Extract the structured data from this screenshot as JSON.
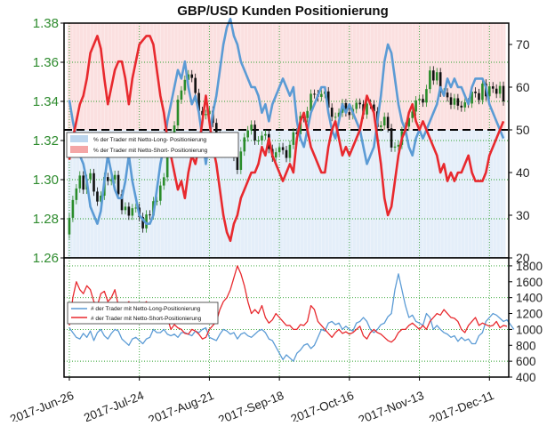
{
  "chart_data": [
    {
      "type": "candlestick+line",
      "title": "GBP/USD Kunden Positionierung",
      "price_axis": {
        "ticks": [
          "1.26",
          "1.28",
          "1.30",
          "1.32",
          "1.34",
          "1.36",
          "1.38"
        ],
        "range": [
          1.26,
          1.38
        ]
      },
      "percent_axis": {
        "ticks": [
          "20",
          "30",
          "40",
          "50",
          "60",
          "70"
        ],
        "range": [
          20,
          75
        ]
      },
      "reference_line": 50,
      "legend": {
        "placement": "left-middle",
        "items": [
          {
            "label": "% der Trader mit Netto-Long- Positionierung",
            "color": "#bcd6ee"
          },
          {
            "label": "% der Trader mit Netto-Short- Positionierung",
            "color": "#f4a6a6"
          }
        ]
      },
      "series": [
        {
          "name": "% der Trader mit Netto-Long- Positionierung",
          "color": "#5b9bd5",
          "values": [
            57,
            52,
            48,
            44,
            42,
            38,
            32,
            30,
            28,
            31,
            38,
            44,
            40,
            36,
            34,
            34,
            38,
            44,
            38,
            34,
            30,
            29,
            28,
            28,
            30,
            36,
            42,
            46,
            52,
            56,
            60,
            64,
            62,
            66,
            60,
            56,
            58,
            54,
            48,
            42,
            48,
            54,
            58,
            64,
            70,
            74,
            76,
            72,
            70,
            66,
            64,
            62,
            60,
            60,
            58,
            54,
            56,
            52,
            56,
            58,
            60,
            62,
            60,
            58,
            60,
            52,
            48,
            46,
            50,
            54,
            56,
            58,
            60,
            60,
            54,
            50,
            48,
            52,
            56,
            54,
            56,
            54,
            52,
            50,
            46,
            42,
            44,
            46,
            52,
            58,
            66,
            70,
            68,
            62,
            56,
            52,
            50,
            46,
            44,
            48,
            50,
            48,
            50,
            52,
            54,
            56,
            60,
            58,
            62,
            60,
            62,
            60,
            60,
            58,
            56,
            60,
            62,
            62,
            62,
            60,
            56,
            54,
            52,
            50,
            48
          ]
        },
        {
          "name": "% der Trader mit Netto-Short- Positionierung",
          "color": "#e8292e",
          "values": [
            43,
            48,
            52,
            56,
            58,
            62,
            68,
            70,
            72,
            69,
            62,
            56,
            60,
            64,
            66,
            66,
            62,
            56,
            62,
            66,
            70,
            71,
            72,
            72,
            70,
            64,
            58,
            54,
            48,
            44,
            40,
            36,
            38,
            34,
            40,
            44,
            42,
            46,
            52,
            58,
            52,
            46,
            42,
            36,
            30,
            26,
            24,
            28,
            30,
            34,
            36,
            38,
            40,
            40,
            42,
            46,
            44,
            48,
            44,
            42,
            40,
            38,
            40,
            42,
            40,
            48,
            52,
            54,
            50,
            46,
            44,
            42,
            40,
            40,
            46,
            50,
            52,
            48,
            44,
            46,
            44,
            46,
            48,
            50,
            54,
            58,
            56,
            54,
            48,
            42,
            34,
            30,
            32,
            38,
            44,
            48,
            50,
            54,
            56,
            52,
            50,
            52,
            50,
            48,
            46,
            44,
            40,
            42,
            38,
            40,
            38,
            40,
            40,
            42,
            44,
            40,
            38,
            38,
            38,
            40,
            44,
            46,
            48,
            50,
            52
          ]
        }
      ],
      "price": {
        "name": "GBP/USD",
        "open": [
          1.272,
          1.2805,
          1.2896,
          1.2955,
          1.3021,
          1.2949,
          1.3003,
          1.3033,
          1.2939,
          1.2888,
          1.2918,
          1.3013,
          1.2993,
          1.3001,
          1.3024,
          1.2926,
          1.2844,
          1.2862,
          1.2816,
          1.2854,
          1.2857,
          1.2809,
          1.2751,
          1.2822,
          1.2818,
          1.289,
          1.2892,
          1.297,
          1.3012,
          1.3147,
          1.3226,
          1.3277,
          1.3409,
          1.3456,
          1.351,
          1.3538,
          1.352,
          1.3443,
          1.3351,
          1.333,
          1.3335,
          1.3352,
          1.329,
          1.3225,
          1.3168,
          1.3145,
          1.3186,
          1.3213,
          1.3117,
          1.305,
          1.3144,
          1.3216,
          1.3252,
          1.3281,
          1.32,
          1.32,
          1.3225,
          1.3233,
          1.3157,
          1.3113,
          1.314,
          1.3166,
          1.3151,
          1.3111,
          1.3178,
          1.3242,
          1.3232,
          1.3325,
          1.3315,
          1.3351,
          1.3439,
          1.3437,
          1.3423,
          1.3438,
          1.3451,
          1.3368,
          1.3321,
          1.3321,
          1.3342,
          1.3391,
          1.3345,
          1.333,
          1.3361,
          1.3393,
          1.3385,
          1.3333,
          1.3389,
          1.3384,
          1.3349,
          1.3269,
          1.3277,
          1.3321,
          1.3263,
          1.3164,
          1.3169,
          1.3178,
          1.3248,
          1.3271,
          1.3315,
          1.3348,
          1.3405,
          1.3413,
          1.3394,
          1.3463,
          1.3558,
          1.3507,
          1.3549,
          1.3445,
          1.3445,
          1.3421,
          1.3383,
          1.3416,
          1.3378,
          1.3369,
          1.3395,
          1.3389,
          1.345,
          1.3442,
          1.3407,
          1.3491,
          1.3426,
          1.3477,
          1.3465,
          1.3439,
          1.3479
        ],
        "close": [
          1.2805,
          1.2896,
          1.2955,
          1.3021,
          1.2949,
          1.3003,
          1.3033,
          1.2939,
          1.2888,
          1.2918,
          1.3013,
          1.2993,
          1.3001,
          1.3024,
          1.2926,
          1.2844,
          1.2862,
          1.2816,
          1.2854,
          1.2857,
          1.2809,
          1.2751,
          1.2822,
          1.2818,
          1.289,
          1.2892,
          1.297,
          1.3012,
          1.3147,
          1.3226,
          1.3277,
          1.3409,
          1.3456,
          1.351,
          1.3538,
          1.352,
          1.3443,
          1.3351,
          1.333,
          1.3335,
          1.3352,
          1.329,
          1.3225,
          1.3168,
          1.3145,
          1.3186,
          1.3213,
          1.3117,
          1.305,
          1.3144,
          1.3216,
          1.3252,
          1.3281,
          1.32,
          1.32,
          1.3225,
          1.3233,
          1.3157,
          1.3113,
          1.314,
          1.3166,
          1.3151,
          1.3111,
          1.3178,
          1.3242,
          1.3232,
          1.3325,
          1.3315,
          1.3351,
          1.3439,
          1.3437,
          1.3423,
          1.3438,
          1.3451,
          1.3368,
          1.3321,
          1.3321,
          1.3342,
          1.3391,
          1.3345,
          1.333,
          1.3361,
          1.3393,
          1.3385,
          1.3333,
          1.3389,
          1.3384,
          1.3349,
          1.3269,
          1.3277,
          1.3321,
          1.3263,
          1.3164,
          1.3169,
          1.3178,
          1.3248,
          1.3271,
          1.3315,
          1.3348,
          1.3405,
          1.3413,
          1.3394,
          1.3463,
          1.3558,
          1.3507,
          1.3549,
          1.3445,
          1.3445,
          1.3421,
          1.3383,
          1.3416,
          1.3378,
          1.3369,
          1.3395,
          1.3389,
          1.345,
          1.3442,
          1.3407,
          1.3491,
          1.3426,
          1.3477,
          1.3465,
          1.3439,
          1.3479,
          1.34
        ]
      }
    },
    {
      "type": "line",
      "y_axis": {
        "ticks": [
          "400",
          "600",
          "800",
          "1000",
          "1200",
          "1400",
          "1600",
          "1800"
        ],
        "range": [
          400,
          1900
        ]
      },
      "x_axis": {
        "tick_labels": [
          "2017-Jun-26",
          "2017-Jul-24",
          "2017-Aug-21",
          "2017-Sep-18",
          "2017-Oct-16",
          "2017-Nov-13",
          "2017-Dec-11"
        ]
      },
      "legend": {
        "placement": "left-middle",
        "items": [
          {
            "label": "# der Trader mit Netto-Long-Positionierung",
            "color": "#5b9bd5"
          },
          {
            "label": "# der Trader mit Netto-Short-Positionierung",
            "color": "#e8292e"
          }
        ]
      },
      "series": [
        {
          "name": "# der Trader mit Netto-Long-Positionierung",
          "color": "#5b9bd5",
          "values": [
            1020,
            960,
            900,
            880,
            950,
            900,
            980,
            860,
            960,
            1000,
            920,
            880,
            950,
            1000,
            980,
            880,
            840,
            800,
            880,
            900,
            860,
            820,
            880,
            900,
            1000,
            960,
            960,
            1000,
            940,
            920,
            940,
            900,
            960,
            960,
            940,
            920,
            980,
            960,
            1000,
            1020,
            900,
            880,
            860,
            940,
            1000,
            980,
            940,
            960,
            880,
            940,
            960,
            920,
            900,
            940,
            980,
            1000,
            960,
            880,
            860,
            780,
            700,
            620,
            680,
            640,
            600,
            700,
            740,
            800,
            820,
            760,
            800,
            900,
            1000,
            980,
            1080,
            1100,
            1060,
            1080,
            1000,
            1040,
            1000,
            980,
            1080,
            1100,
            1150,
            1100,
            1000,
            960,
            1000,
            1060,
            1080,
            1160,
            1200,
            1500,
            1700,
            1500,
            1300,
            1150,
            1180,
            1100,
            1080,
            1050,
            1200,
            1150,
            1000,
            1050,
            1000,
            960,
            940,
            900,
            920,
            850,
            900,
            860,
            880,
            820,
            820,
            920,
            960,
            1100,
            1150,
            1200,
            1180,
            1140,
            1100,
            1120,
            1060,
            1000
          ]
        },
        {
          "name": "# der Trader mit Netto-Short-Positionierung",
          "color": "#e8292e",
          "values": [
            1050,
            1400,
            1600,
            1500,
            1450,
            1550,
            1500,
            1350,
            1300,
            1450,
            1480,
            1350,
            1400,
            1500,
            1300,
            1200,
            1300,
            1350,
            1250,
            1200,
            1240,
            1300,
            1350,
            1250,
            1300,
            1200,
            1150,
            1100,
            1150,
            1000,
            1060,
            1020,
            1000,
            950,
            940,
            1000,
            980,
            940,
            880,
            900,
            1000,
            1050,
            1100,
            1250,
            1350,
            1400,
            1500,
            1650,
            1800,
            1700,
            1550,
            1350,
            1200,
            1250,
            1200,
            1300,
            1150,
            1080,
            1120,
            1200,
            1150,
            1100,
            1050,
            1050,
            1000,
            1000,
            1060,
            1050,
            1100,
            1300,
            1250,
            1100,
            1050,
            1000,
            950,
            900,
            960,
            1000,
            950,
            970,
            940,
            960,
            1000,
            1040,
            920,
            880,
            960,
            1000,
            960,
            940,
            900,
            860,
            840,
            880,
            960,
            1000,
            1000,
            1050,
            1080,
            1040,
            1000,
            1050,
            1000,
            1100,
            1150,
            1200,
            1180,
            1250,
            1200,
            1150,
            1140,
            1100,
            1000,
            960,
            1050,
            1100,
            1150,
            1050,
            1080,
            1060,
            1040,
            1050,
            1100,
            1020,
            1050,
            1040
          ]
        }
      ]
    }
  ]
}
